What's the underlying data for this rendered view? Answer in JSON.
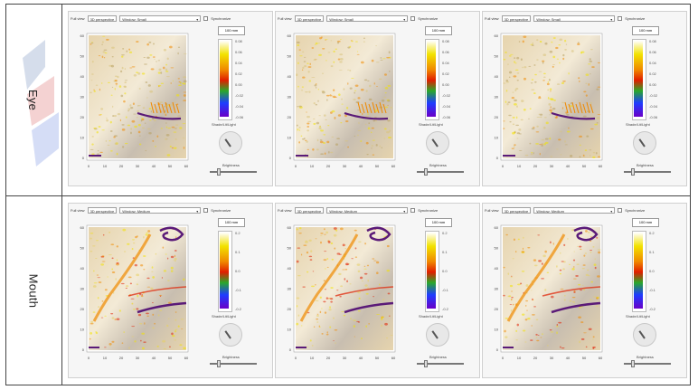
{
  "rows": [
    {
      "label": "Eye",
      "panels": [
        {
          "fullview_label": "Full view",
          "view_value": "3D perspective",
          "window_value": "Window: Small",
          "sync_label": "Synchronize",
          "unit": "100 mm",
          "ticks": [
            "0.08",
            "0.06",
            "0.04",
            "0.02",
            "0.00",
            "-0.02",
            "-0.04",
            "-0.06"
          ],
          "shade_label": "Shade/Lit/Light",
          "brightness_label": "Brightness",
          "brightness": 0.2
        },
        {
          "fullview_label": "Full view",
          "view_value": "3D perspective",
          "window_value": "Window: Small",
          "sync_label": "Synchronize",
          "unit": "100 mm",
          "ticks": [
            "0.08",
            "0.06",
            "0.04",
            "0.02",
            "0.00",
            "-0.02",
            "-0.04",
            "-0.06"
          ],
          "shade_label": "Shade/Lit/Light",
          "brightness_label": "Brightness",
          "brightness": 0.2
        },
        {
          "fullview_label": "Full view",
          "view_value": "3D perspective",
          "window_value": "Window: Small",
          "sync_label": "Synchronize",
          "unit": "100 mm",
          "ticks": [
            "0.08",
            "0.06",
            "0.04",
            "0.02",
            "0.00",
            "-0.02",
            "-0.04",
            "-0.06"
          ],
          "shade_label": "Shade/Lit/Light",
          "brightness_label": "Brightness",
          "brightness": 0.2
        }
      ]
    },
    {
      "label": "Mouth",
      "panels": [
        {
          "fullview_label": "Full view",
          "view_value": "3D perspective",
          "window_value": "Window: Medium",
          "sync_label": "Synchronize",
          "unit": "100 mm",
          "ticks": [
            "0.2",
            "0.1",
            "0.0",
            "-0.1",
            "-0.2"
          ],
          "shade_label": "Shade/Lit/Light",
          "brightness_label": "Brightness",
          "brightness": 0.2
        },
        {
          "fullview_label": "Full view",
          "view_value": "3D perspective",
          "window_value": "Window: Medium",
          "sync_label": "Synchronize",
          "unit": "100 mm",
          "ticks": [
            "0.2",
            "0.1",
            "0.0",
            "-0.1",
            "-0.2"
          ],
          "shade_label": "Shade/Lit/Light",
          "brightness_label": "Brightness",
          "brightness": 0.2
        },
        {
          "fullview_label": "Full view",
          "view_value": "3D perspective",
          "window_value": "Window: Medium",
          "sync_label": "Synchronize",
          "unit": "100 mm",
          "ticks": [
            "0.2",
            "0.1",
            "0.0",
            "-0.1",
            "-0.2"
          ],
          "shade_label": "Shade/Lit/Light",
          "brightness_label": "Brightness",
          "brightness": 0.2
        }
      ]
    }
  ],
  "axis_ticks_y": [
    "60",
    "50",
    "40",
    "30",
    "20",
    "10",
    "0"
  ],
  "axis_ticks_x": [
    "0",
    "10",
    "20",
    "30",
    "40",
    "50",
    "60"
  ],
  "colors": {
    "skin_light": "#f3ead6",
    "skin_mid": "#e6d4ae",
    "shadow": "#c8beb0",
    "cbar_top": "#ffffff",
    "cbar_yellow": "#f2e200",
    "cbar_orange": "#f08a00",
    "cbar_red": "#e01e00",
    "cbar_green": "#2aa82a",
    "cbar_blue": "#1e3cff",
    "cbar_violet": "#6a00c8",
    "feature_purple": "#5a1a78"
  }
}
